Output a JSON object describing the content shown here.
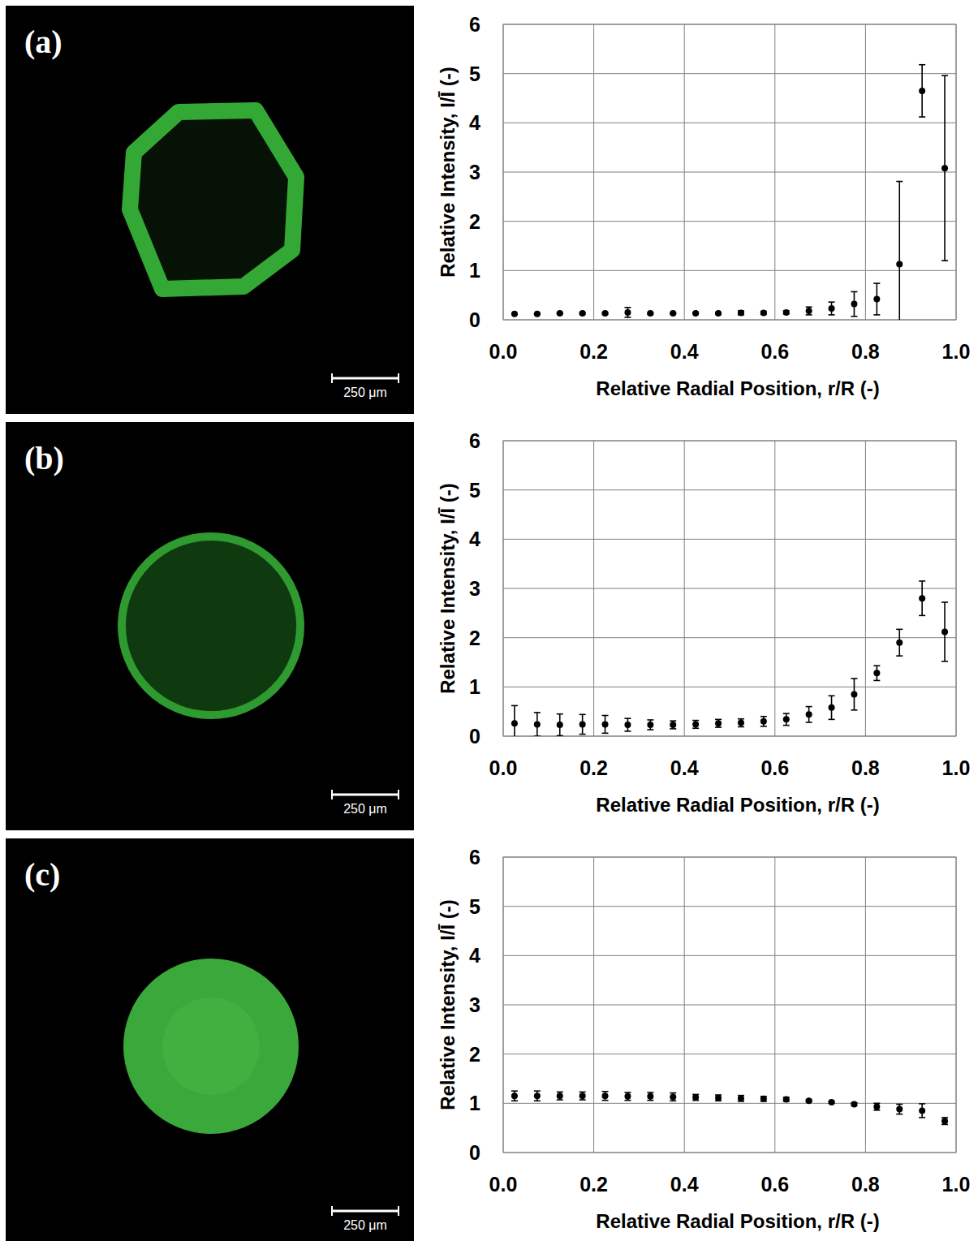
{
  "chart_data": [
    {
      "type": "scatter",
      "panel_label": "(a)",
      "annotations": [
        "250 μm"
      ],
      "x_label": "Relative Radial Position, r/R (-)",
      "y_label": "Relative Intensity, I/Ī (-)",
      "x": [
        0.025,
        0.075,
        0.125,
        0.175,
        0.225,
        0.275,
        0.325,
        0.375,
        0.425,
        0.475,
        0.525,
        0.575,
        0.625,
        0.675,
        0.725,
        0.775,
        0.825,
        0.875,
        0.925,
        0.975
      ],
      "values": [
        0.12,
        0.12,
        0.13,
        0.13,
        0.13,
        0.15,
        0.13,
        0.13,
        0.13,
        0.13,
        0.14,
        0.14,
        0.15,
        0.18,
        0.23,
        0.32,
        0.42,
        1.13,
        4.65,
        3.08
      ],
      "errors": [
        0.01,
        0.01,
        0.01,
        0.02,
        0.02,
        0.1,
        0.02,
        0.01,
        0.01,
        0.02,
        0.04,
        0.03,
        0.03,
        0.08,
        0.13,
        0.25,
        0.32,
        1.68,
        0.53,
        1.88
      ],
      "color": "#000000",
      "marker": "circle",
      "xlim": [
        0,
        1
      ],
      "xticks": [
        {
          "value": 0,
          "label": "0.0"
        },
        0.2,
        0.4,
        0.6,
        0.8,
        {
          "value": 1,
          "label": "1.0"
        }
      ],
      "ylim": [
        0,
        6
      ],
      "yticks": [
        0,
        1,
        2,
        3,
        4,
        5,
        6
      ],
      "grid": true
    },
    {
      "type": "scatter",
      "panel_label": "(b)",
      "annotations": [
        "250 μm"
      ],
      "x_label": "Relative Radial Position, r/R (-)",
      "y_label": "Relative Intensity, I/Ī (-)",
      "x": [
        0.025,
        0.075,
        0.125,
        0.175,
        0.225,
        0.275,
        0.325,
        0.375,
        0.425,
        0.475,
        0.525,
        0.575,
        0.625,
        0.675,
        0.725,
        0.775,
        0.825,
        0.875,
        0.925,
        0.975
      ],
      "values": [
        0.26,
        0.24,
        0.23,
        0.24,
        0.24,
        0.23,
        0.23,
        0.23,
        0.24,
        0.26,
        0.27,
        0.3,
        0.34,
        0.44,
        0.58,
        0.85,
        1.28,
        1.9,
        2.8,
        2.12
      ],
      "errors": [
        0.36,
        0.24,
        0.22,
        0.2,
        0.18,
        0.13,
        0.1,
        0.08,
        0.08,
        0.08,
        0.08,
        0.1,
        0.12,
        0.16,
        0.24,
        0.32,
        0.15,
        0.27,
        0.35,
        0.6
      ],
      "color": "#000000",
      "marker": "circle",
      "xlim": [
        0,
        1
      ],
      "xticks": [
        {
          "value": 0,
          "label": "0.0"
        },
        0.2,
        0.4,
        0.6,
        0.8,
        {
          "value": 1,
          "label": "1.0"
        }
      ],
      "ylim": [
        0,
        6
      ],
      "yticks": [
        0,
        1,
        2,
        3,
        4,
        5,
        6
      ],
      "grid": true
    },
    {
      "type": "scatter",
      "panel_label": "(c)",
      "annotations": [
        "250 μm"
      ],
      "x_label": "Relative Radial Position, r/R (-)",
      "y_label": "Relative Intensity, I/Ī (-)",
      "x": [
        0.025,
        0.075,
        0.125,
        0.175,
        0.225,
        0.275,
        0.325,
        0.375,
        0.425,
        0.475,
        0.525,
        0.575,
        0.625,
        0.675,
        0.725,
        0.775,
        0.825,
        0.875,
        0.925,
        0.975
      ],
      "values": [
        1.15,
        1.15,
        1.15,
        1.15,
        1.15,
        1.14,
        1.14,
        1.13,
        1.12,
        1.11,
        1.1,
        1.09,
        1.08,
        1.05,
        1.02,
        0.98,
        0.93,
        0.88,
        0.85,
        0.64
      ],
      "errors": [
        0.1,
        0.1,
        0.08,
        0.08,
        0.09,
        0.08,
        0.08,
        0.08,
        0.06,
        0.06,
        0.06,
        0.05,
        0.04,
        0.02,
        0.02,
        0.03,
        0.07,
        0.1,
        0.14,
        0.07
      ],
      "color": "#000000",
      "marker": "circle",
      "xlim": [
        0,
        1
      ],
      "xticks": [
        {
          "value": 0,
          "label": "0.0"
        },
        0.2,
        0.4,
        0.6,
        0.8,
        {
          "value": 1,
          "label": "1.0"
        }
      ],
      "ylim": [
        0,
        6
      ],
      "yticks": [
        0,
        1,
        2,
        3,
        4,
        5,
        6
      ],
      "grid": true
    }
  ]
}
